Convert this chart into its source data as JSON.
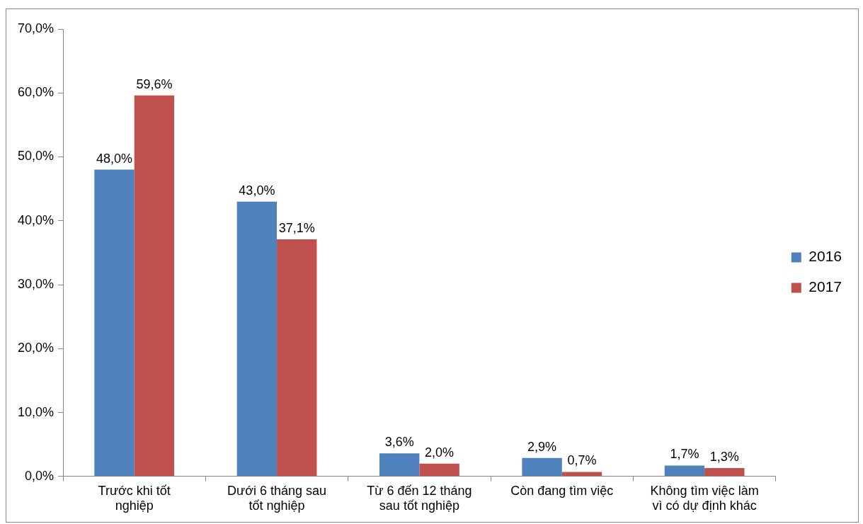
{
  "chart_data": {
    "type": "bar",
    "categories": [
      "Trước khi tốt nghiệp",
      "Dưới 6 tháng sau tốt nghiệp",
      "Từ 6 đến 12 tháng sau tốt nghiệp",
      "Còn đang tìm việc",
      "Không tìm việc làm vì có dự định khác"
    ],
    "series": [
      {
        "name": "2016",
        "color": "#4f81bd",
        "values": [
          48.0,
          43.0,
          3.6,
          2.9,
          1.7
        ],
        "value_labels": [
          "48,0%",
          "43,0%",
          "3,6%",
          "2,9%",
          "1,7%"
        ]
      },
      {
        "name": "2017",
        "color": "#c0504d",
        "values": [
          59.6,
          37.1,
          2.0,
          0.7,
          1.3
        ],
        "value_labels": [
          "59,6%",
          "37,1%",
          "2,0%",
          "0,7%",
          "1,3%"
        ]
      }
    ],
    "ylim": [
      0,
      70
    ],
    "yticks": [
      {
        "value": 0,
        "label": "0,0%"
      },
      {
        "value": 10,
        "label": "10,0%"
      },
      {
        "value": 20,
        "label": "20,0%"
      },
      {
        "value": 30,
        "label": "30,0%"
      },
      {
        "value": 40,
        "label": "40,0%"
      },
      {
        "value": 50,
        "label": "50,0%"
      },
      {
        "value": 60,
        "label": "60,0%"
      },
      {
        "value": 70,
        "label": "70,0%"
      }
    ],
    "grid": false,
    "legend": "right"
  }
}
